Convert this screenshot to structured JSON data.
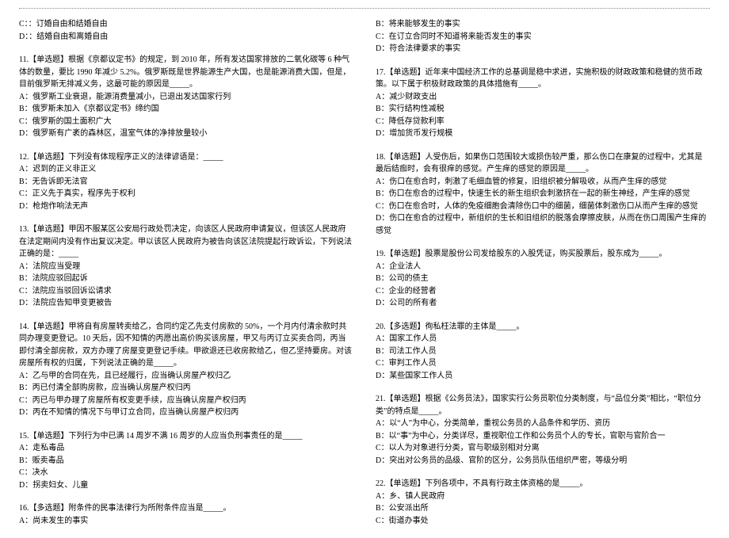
{
  "left": {
    "continued": {
      "optC": "C：：订婚自由和结婚自由",
      "optD": "D：：结婚自由和离婚自由"
    },
    "q11": {
      "stem": "11.【单选题】根据《京都议定书》的规定，到 2010 年，所有发达国家排放的二氧化碳等 6 种气体的数量，要比 1990 年减少 5.2%。俄罗斯既是世界能源生产大国，也是能源消费大国，但是，目前俄罗斯无排减义务，这最可能的原因是_____。",
      "A": "A：俄罗斯工业衰退，能源消费量减小，已退出发达国家行列",
      "B": "B：俄罗斯未加入《京都议定书》缔约国",
      "C": "C：俄罗斯的国土面积广大",
      "D": "D：俄罗斯有广袤的森林区，温室气体的净排放量较小"
    },
    "q12": {
      "stem": "12.【单选题】下列没有体现程序正义的法律谚语是：_____",
      "A": "A：迟到的正义非正义",
      "B": "B：无告诉即无法官",
      "C": "C：正义先于真实，程序先于权利",
      "D": "D：枪炮作响法无声"
    },
    "q13": {
      "stem": "13.【单选题】甲因不服某区公安局行政处罚决定，向该区人民政府申请复议，但该区人民政府在法定期间内没有作出复议决定。甲以该区人民政府为被告向该区法院提起行政诉讼，下列说法正确的是：_____",
      "A": "A：法院应当受理",
      "B": "B：法院应驳回起诉",
      "C": "C：法院应当驳回诉讼请求",
      "D": "D：法院应告知甲变更被告"
    },
    "q14": {
      "stem": "14.【单选题】甲将自有房屋转卖给乙，合同约定乙先支付房款的 50%，一个月内付清余款时共同办理变更登记。10 天后，因不知情的丙愿出高价购买该房屋，甲又与丙订立买卖合同，丙当即付清全部房款，双方办理了房屋变更登记手续。甲欲退还已收房款给乙，但乙坚持要房。对该房屋所有权的归属，下列说法正确的是_____。",
      "A": "A：乙与甲的合同在先，且已经履行，应当确认房屋产权归乙",
      "B": "B：丙已付清全部购房款，应当确认房屋产权归丙",
      "C": "C：丙已与甲办理了房屋所有权变更手续，应当确认房屋产权归丙",
      "D": "D：丙在不知情的情况下与甲订立合同，应当确认房屋产权归丙"
    },
    "q15": {
      "stem": "15.【单选题】下列行为中已满 14 周岁不满 16 周岁的人应当负刑事责任的是_____",
      "A": "A：走私毒品",
      "B": "B：贩卖毒品",
      "C": "C：决水",
      "D": "D：拐卖妇女、儿童"
    },
    "q16": {
      "stem": "16.【多选题】附条件的民事法律行为所附条件应当是_____。",
      "A": "A：尚未发生的事实"
    }
  },
  "right": {
    "continued": {
      "B": "B：将来能够发生的事实",
      "C": "C：在订立合同时不知道将来能否发生的事实",
      "D": "D：符合法律要求的事实"
    },
    "q17": {
      "stem": "17.【单选题】近年来中国经济工作的总基调是稳中求进，实施积极的财政政策和稳健的货币政策。以下属于积极财政政策的具体措施有_____。",
      "A": "A：减少财政支出",
      "B": "B：实行结构性减税",
      "C": "C：降低存贷款利率",
      "D": "D：增加货币发行规模"
    },
    "q18": {
      "stem": "18.【单选题】人受伤后，如果伤口范围较大或损伤较严重，那么伤口在康复的过程中，尤其是最后结痂时，会有很痒的感觉。产生痒的感觉的原因是_____。",
      "A": "A：伤口在愈合时，刺激了毛细血管的修复，旧组织被分解吸收，从而产生痒的感觉",
      "B": "B：伤口在愈合的过程中，快速生长的新生组织会刺激挤在一起的新生神经，产生痒的感觉",
      "C": "C：伤口在愈合时，人体的免疫细胞会清除伤口中的细菌，细菌体刺激伤口从而产生痒的感觉",
      "D": "D：伤口在愈合的过程中，新组织的生长和旧组织的脱落会摩擦皮肤，从而在伤口周围产生痒的感觉"
    },
    "q19": {
      "stem": "19.【单选题】股票是股份公司发给股东的入股凭证，购买股票后，股东成为_____。",
      "A": "A：企业法人",
      "B": "B：公司的债主",
      "C": "C：企业的经营者",
      "D": "D：公司的所有者"
    },
    "q20": {
      "stem": "20.【多选题】徇私枉法罪的主体是_____。",
      "A": "A：国家工作人员",
      "B": "B：司法工作人员",
      "C": "C：审判工作人员",
      "D": "D：某些国家工作人员"
    },
    "q21": {
      "stem": "21.【单选题】根据《公务员法》，国家实行公务员职位分类制度，与“品位分类”相比，“职位分类”的特点是_____。",
      "A": "A：以“人”为中心，分类简单，重视公务员的人品条件和学历、资历",
      "B": "B：以“事”为中心，分类详尽，重视职位工作和公务员个人的专长，官职与官阶合一",
      "C": "C：以人为对象进行分类，官与职级别相对分离",
      "D": "D：突出对公务员的品级、官阶的区分，公务员队伍组织严密，等级分明"
    },
    "q22": {
      "stem": "22.【单选题】下列各项中，不具有行政主体资格的是_____。",
      "A": "A：乡、镇人民政府",
      "B": "B：公安派出所",
      "C": "C：街道办事处"
    }
  }
}
